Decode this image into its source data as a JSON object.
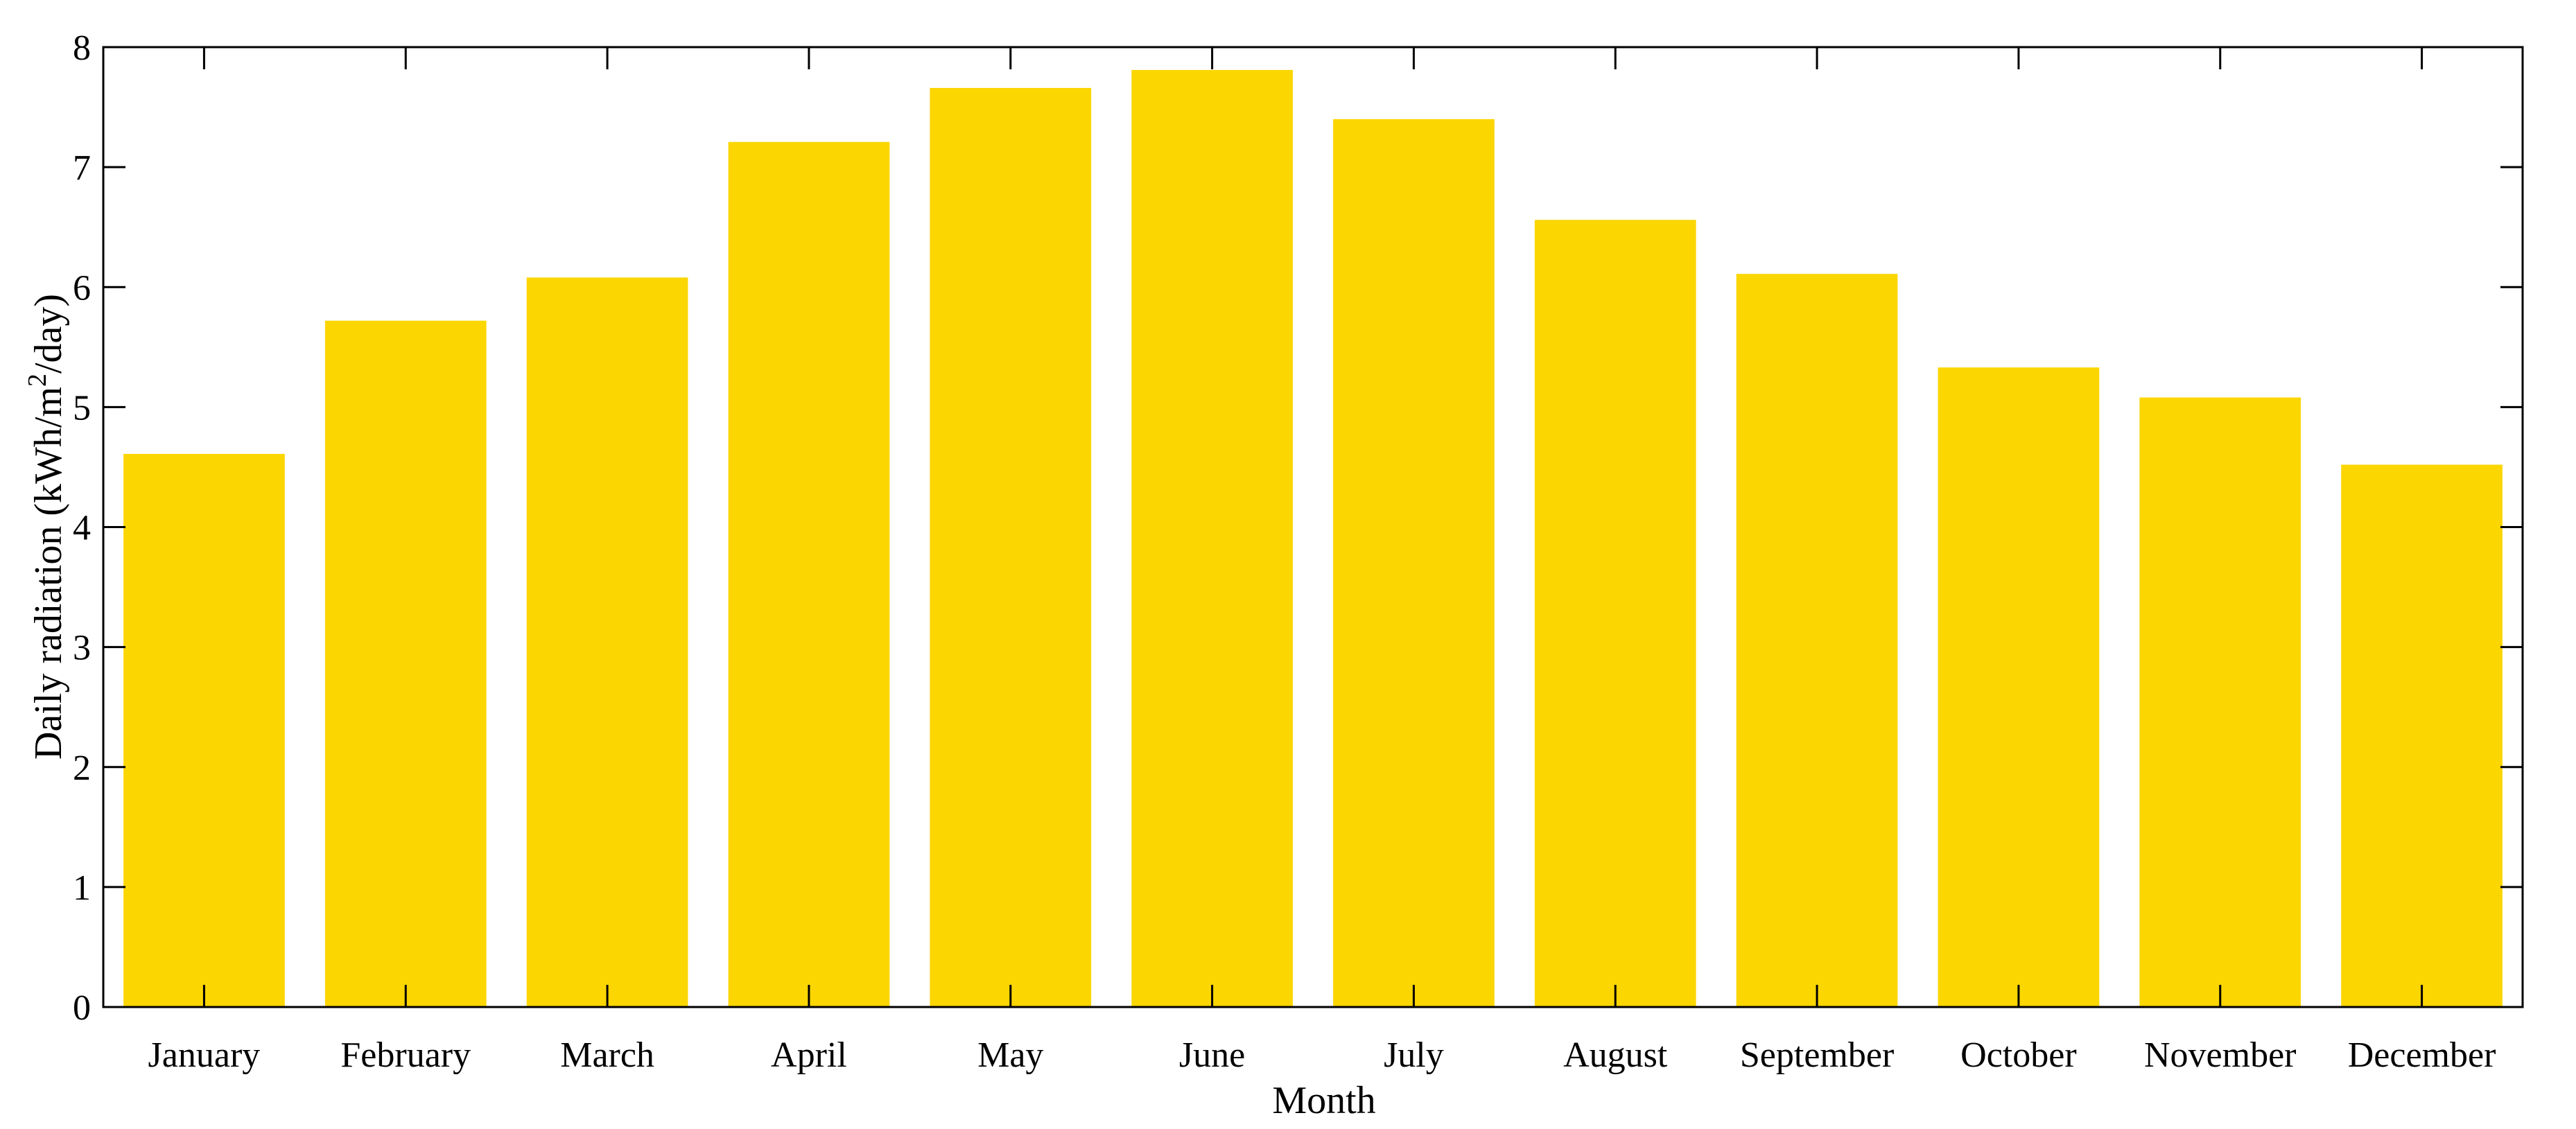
{
  "chart_data": {
    "type": "bar",
    "categories": [
      "January",
      "February",
      "March",
      "April",
      "May",
      "June",
      "July",
      "August",
      "September",
      "October",
      "November",
      "December"
    ],
    "values": [
      4.61,
      5.72,
      6.08,
      7.21,
      7.66,
      7.81,
      7.4,
      6.56,
      6.11,
      5.33,
      5.08,
      4.52
    ],
    "xlabel": "Month",
    "ylabel_prefix": "Daily radiation (kWh/m",
    "ylabel_superscript": "2",
    "ylabel_suffix": "/day)",
    "ylim": [
      0,
      8
    ],
    "yticks": [
      "0",
      "1",
      "2",
      "3",
      "4",
      "5",
      "6",
      "7",
      "8"
    ],
    "bar_color": "#FCD600",
    "axis_color": "#000000",
    "grid": false,
    "legend": "none",
    "box": true
  }
}
